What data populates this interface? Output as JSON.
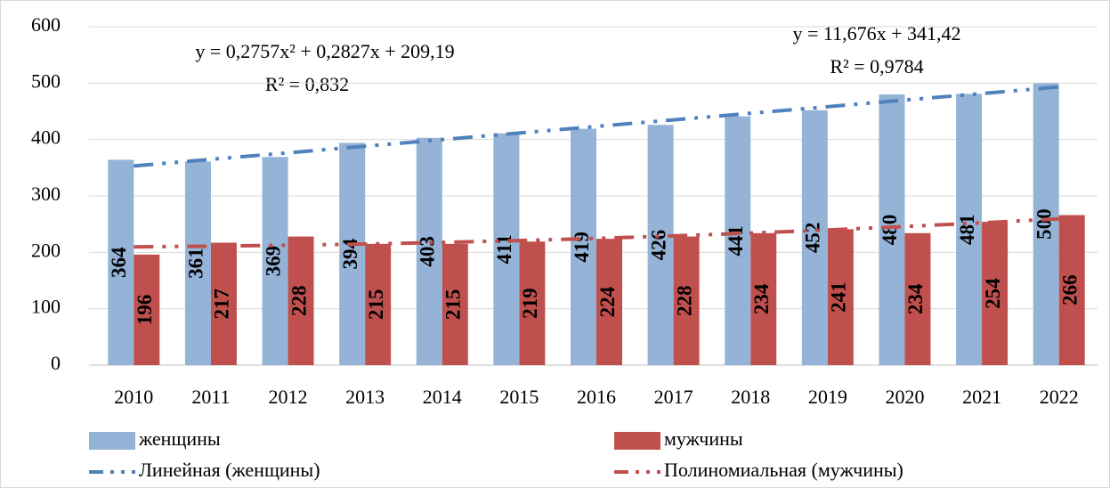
{
  "chart_data": {
    "type": "bar",
    "categories": [
      "2010",
      "2011",
      "2012",
      "2013",
      "2014",
      "2015",
      "2016",
      "2017",
      "2018",
      "2019",
      "2020",
      "2021",
      "2022"
    ],
    "series": [
      {
        "name": "женщины",
        "color": "#95b3d7",
        "values": [
          364,
          361,
          369,
          394,
          403,
          411,
          419,
          426,
          441,
          452,
          480,
          481,
          500
        ]
      },
      {
        "name": "мужчины",
        "color": "#c0504d",
        "values": [
          196,
          217,
          228,
          215,
          215,
          219,
          224,
          228,
          234,
          241,
          234,
          254,
          266
        ]
      }
    ],
    "trendlines": [
      {
        "name": "Линейная (женщины)",
        "color": "#4f81bd",
        "values": [
          353.1,
          364.8,
          376.4,
          388.1,
          399.8,
          411.5,
          423.2,
          434.8,
          446.5,
          458.2,
          469.9,
          481.5,
          493.2
        ]
      },
      {
        "name": "Полиномиальная (мужчины)",
        "color": "#c0504d",
        "values": [
          209.7,
          210.9,
          212.5,
          214.7,
          217.5,
          220.8,
          224.7,
          229.1,
          234.1,
          239.6,
          245.7,
          252.3,
          259.4
        ]
      }
    ],
    "annotations": [
      "y = 0,2757x² + 0,2827x + 209,19",
      "R² = 0,832",
      "y = 11,676x + 341,42",
      "R² = 0,9784"
    ],
    "ylim": [
      0,
      600
    ],
    "yticks": [
      0,
      100,
      200,
      300,
      400,
      500,
      600
    ],
    "grid": true
  }
}
